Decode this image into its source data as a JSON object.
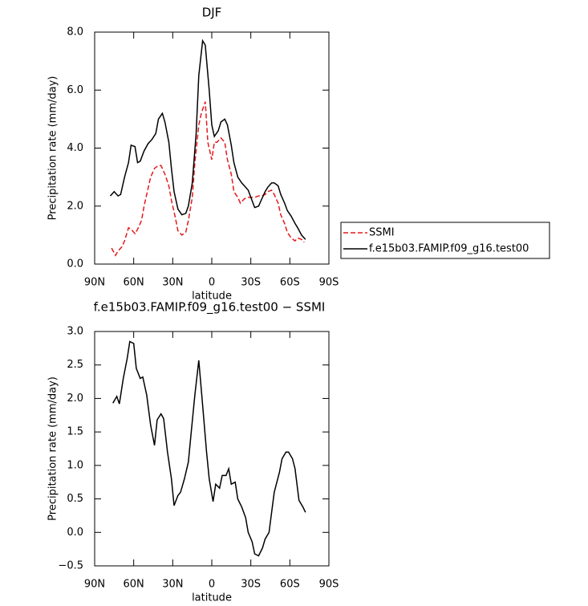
{
  "chart_data": [
    {
      "type": "line",
      "title": "DJF",
      "xlabel": "latitude",
      "ylabel": "Precipitation rate (mm/day)",
      "xlim": [
        90,
        -90
      ],
      "xticks": [
        {
          "value": 90,
          "label": "90N"
        },
        {
          "value": 60,
          "label": "60N"
        },
        {
          "value": 30,
          "label": "30N"
        },
        0,
        {
          "value": -30,
          "label": "30S"
        },
        {
          "value": -60,
          "label": "60S"
        },
        {
          "value": -90,
          "label": "90S"
        }
      ],
      "ylim": [
        0,
        8
      ],
      "yticks": [
        {
          "value": 0,
          "label": "0.0"
        },
        {
          "value": 2,
          "label": "2.0"
        },
        {
          "value": 4,
          "label": "4.0"
        },
        {
          "value": 6,
          "label": "6.0"
        },
        {
          "value": 8,
          "label": "8.0"
        }
      ],
      "legend": "right",
      "series": [
        {
          "name": "SSMI",
          "color": "#e41a1c",
          "style": "dashed",
          "x": [
            77,
            74,
            72,
            69,
            67,
            64,
            62,
            59,
            57,
            54,
            52,
            49,
            47,
            44,
            41,
            39,
            36,
            33,
            31,
            28,
            26,
            23,
            20,
            18,
            15,
            13,
            10,
            8,
            5,
            3,
            0,
            -2,
            -4,
            -7,
            -10,
            -12,
            -15,
            -17,
            -20,
            -22,
            -25,
            -28,
            -30,
            -33,
            -36,
            -38,
            -41,
            -43,
            -46,
            -48,
            -51,
            -53,
            -56,
            -58,
            -61,
            -64,
            -66,
            -69,
            -71
          ],
          "values": [
            0.55,
            0.3,
            0.45,
            0.6,
            0.8,
            1.25,
            1.2,
            1.05,
            1.2,
            1.5,
            2.0,
            2.6,
            3.0,
            3.3,
            3.4,
            3.4,
            3.1,
            2.7,
            2.2,
            1.6,
            1.15,
            1.0,
            1.1,
            1.5,
            2.3,
            3.5,
            4.8,
            5.2,
            5.6,
            4.2,
            3.6,
            4.2,
            4.2,
            4.35,
            4.2,
            3.6,
            3.1,
            2.5,
            2.3,
            2.1,
            2.25,
            2.3,
            2.3,
            2.3,
            2.35,
            2.35,
            2.4,
            2.5,
            2.55,
            2.4,
            2.1,
            1.7,
            1.4,
            1.1,
            0.9,
            0.8,
            0.9,
            0.85,
            0.75
          ]
        },
        {
          "name": "f.e15b03.FAMIP.f09_g16.test00",
          "color": "#000000",
          "style": "solid",
          "x": [
            78,
            75,
            72,
            70,
            67,
            64,
            62,
            59,
            57,
            55,
            52,
            49,
            46,
            43,
            41,
            38,
            36,
            33,
            31,
            29,
            26,
            23,
            20,
            18,
            15,
            12,
            10,
            7,
            5,
            2,
            0,
            -2,
            -5,
            -7,
            -10,
            -12,
            -15,
            -17,
            -20,
            -23,
            -25,
            -28,
            -30,
            -33,
            -36,
            -38,
            -41,
            -43,
            -46,
            -48,
            -51,
            -53,
            -56,
            -58,
            -61,
            -64,
            -66,
            -69,
            -72
          ],
          "values": [
            2.35,
            2.5,
            2.35,
            2.4,
            3.0,
            3.5,
            4.1,
            4.05,
            3.5,
            3.55,
            3.9,
            4.15,
            4.3,
            4.5,
            5.0,
            5.2,
            4.9,
            4.2,
            3.3,
            2.5,
            1.9,
            1.7,
            1.75,
            2.0,
            2.8,
            4.5,
            6.5,
            7.7,
            7.55,
            6.0,
            4.8,
            4.4,
            4.6,
            4.9,
            5.0,
            4.8,
            4.1,
            3.5,
            3.0,
            2.8,
            2.7,
            2.55,
            2.3,
            1.95,
            2.0,
            2.2,
            2.5,
            2.65,
            2.8,
            2.8,
            2.7,
            2.4,
            2.1,
            1.85,
            1.65,
            1.4,
            1.25,
            1.0,
            0.85
          ]
        }
      ]
    },
    {
      "type": "line",
      "title": "f.e15b03.FAMIP.f09_g16.test00 − SSMI",
      "xlabel": "latitude",
      "ylabel": "Precipitation rate (mm/day)",
      "xlim": [
        90,
        -90
      ],
      "xticks": [
        {
          "value": 90,
          "label": "90N"
        },
        {
          "value": 60,
          "label": "60N"
        },
        {
          "value": 30,
          "label": "30N"
        },
        0,
        {
          "value": -30,
          "label": "30S"
        },
        {
          "value": -60,
          "label": "60S"
        },
        {
          "value": -90,
          "label": "90S"
        }
      ],
      "ylim": [
        -0.5,
        3
      ],
      "yticks": [
        {
          "value": -0.5,
          "label": "−0.5"
        },
        {
          "value": 0,
          "label": "0.0"
        },
        0.5,
        {
          "value": 1,
          "label": "1.0"
        },
        1.5,
        {
          "value": 2,
          "label": "2.0"
        },
        2.5,
        {
          "value": 3,
          "label": "3.0"
        }
      ],
      "color": "#000000",
      "x": [
        76,
        73,
        71,
        68,
        65,
        63,
        60,
        58,
        55,
        53,
        50,
        47,
        44,
        42,
        39,
        37,
        34,
        31,
        29,
        26,
        24,
        21,
        18,
        16,
        13,
        10,
        7,
        4,
        2,
        -1,
        -3,
        -6,
        -8,
        -11,
        -13,
        -15,
        -18,
        -20,
        -23,
        -26,
        -28,
        -31,
        -33,
        -36,
        -39,
        -41,
        -44,
        -46,
        -48,
        -52,
        -54,
        -57,
        -59,
        -62,
        -64,
        -67,
        -70,
        -72
      ],
      "values": [
        1.93,
        2.03,
        1.92,
        2.3,
        2.6,
        2.85,
        2.82,
        2.45,
        2.3,
        2.32,
        2.05,
        1.6,
        1.3,
        1.68,
        1.77,
        1.7,
        1.2,
        0.8,
        0.4,
        0.55,
        0.6,
        0.8,
        1.05,
        1.45,
        2.05,
        2.57,
        1.9,
        1.2,
        0.8,
        0.46,
        0.72,
        0.66,
        0.85,
        0.85,
        0.95,
        0.72,
        0.75,
        0.5,
        0.38,
        0.22,
        0.0,
        -0.14,
        -0.32,
        -0.35,
        -0.23,
        -0.1,
        0.0,
        0.3,
        0.6,
        0.9,
        1.1,
        1.2,
        1.2,
        1.1,
        0.95,
        0.48,
        0.38,
        0.3
      ]
    }
  ]
}
